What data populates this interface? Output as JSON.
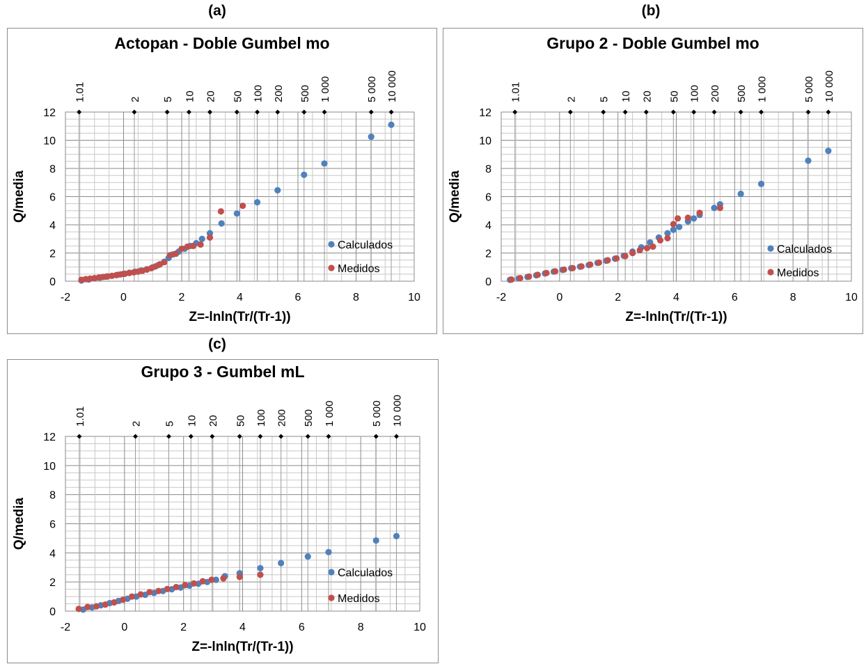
{
  "panels": [
    {
      "letter": "(a)"
    },
    {
      "letter": "(b)"
    },
    {
      "letter": "(c)"
    }
  ],
  "chart_data": [
    {
      "type": "scatter",
      "title": "Actopan - Doble Gumbel mo",
      "xlabel": "Z=-lnln(Tr/(Tr-1))",
      "ylabel": "Q/media",
      "xlim": [
        -2,
        10
      ],
      "ylim": [
        0,
        12
      ],
      "x_ticks": [
        -2,
        0,
        2,
        4,
        6,
        8,
        10
      ],
      "y_ticks": [
        0,
        2,
        4,
        6,
        8,
        10,
        12
      ],
      "grid": true,
      "legend_position": "right",
      "return_period_axis": {
        "labels": [
          "1.01",
          "2",
          "5",
          "10",
          "20",
          "50",
          "100",
          "200",
          "500",
          "1 000",
          "5 000",
          "10 000"
        ],
        "z": [
          -1.53,
          0.37,
          1.5,
          2.25,
          2.97,
          3.9,
          4.6,
          5.3,
          6.21,
          6.91,
          8.52,
          9.21
        ],
        "level": 12
      },
      "series": [
        {
          "name": "Calculados",
          "color": "#4f81bd",
          "x": [
            -1.45,
            -1.2,
            -1.0,
            -0.8,
            -0.6,
            -0.4,
            -0.2,
            0.0,
            0.2,
            0.4,
            0.6,
            0.8,
            1.0,
            1.2,
            1.4,
            1.55,
            1.7,
            1.9,
            2.1,
            2.3,
            2.5,
            2.7,
            2.97,
            3.37,
            3.9,
            4.6,
            5.3,
            6.21,
            6.91,
            8.52,
            9.21
          ],
          "y": [
            0.05,
            0.12,
            0.2,
            0.26,
            0.32,
            0.38,
            0.45,
            0.52,
            0.6,
            0.67,
            0.75,
            0.85,
            0.98,
            1.15,
            1.38,
            1.65,
            1.9,
            2.1,
            2.3,
            2.5,
            2.7,
            3.0,
            3.4,
            4.1,
            4.8,
            5.6,
            6.45,
            7.55,
            8.35,
            10.25,
            11.1
          ]
        },
        {
          "name": "Medidos",
          "color": "#c0504d",
          "x": [
            -1.45,
            -1.3,
            -1.15,
            -1.0,
            -0.85,
            -0.7,
            -0.55,
            -0.4,
            -0.25,
            -0.1,
            0.05,
            0.2,
            0.35,
            0.5,
            0.65,
            0.8,
            0.95,
            1.1,
            1.25,
            1.4,
            1.6,
            1.8,
            2.0,
            2.2,
            2.4,
            2.65,
            2.97,
            3.35,
            4.1
          ],
          "y": [
            0.1,
            0.15,
            0.18,
            0.22,
            0.26,
            0.3,
            0.34,
            0.38,
            0.43,
            0.48,
            0.53,
            0.58,
            0.63,
            0.68,
            0.74,
            0.82,
            0.92,
            1.05,
            1.2,
            1.35,
            1.85,
            1.95,
            2.3,
            2.45,
            2.5,
            2.6,
            3.1,
            4.95,
            5.35
          ]
        }
      ]
    },
    {
      "type": "scatter",
      "title": "Grupo 2 - Doble Gumbel mo",
      "xlabel": "Z=-lnln(Tr/(Tr-1))",
      "ylabel": "Q/media",
      "xlim": [
        -2,
        10
      ],
      "ylim": [
        0,
        12
      ],
      "x_ticks": [
        -2,
        0,
        2,
        4,
        6,
        8,
        10
      ],
      "y_ticks": [
        0,
        2,
        4,
        6,
        8,
        10,
        12
      ],
      "grid": true,
      "legend_position": "right",
      "return_period_axis": {
        "labels": [
          "1.01",
          "2",
          "5",
          "10",
          "20",
          "50",
          "100",
          "200",
          "500",
          "1 000",
          "5 000",
          "10 000"
        ],
        "z": [
          -1.53,
          0.37,
          1.5,
          2.25,
          2.97,
          3.9,
          4.6,
          5.3,
          6.21,
          6.91,
          8.52,
          9.21
        ],
        "level": 12
      },
      "series": [
        {
          "name": "Calculados",
          "color": "#4f81bd",
          "x": [
            -1.7,
            -1.4,
            -1.1,
            -0.8,
            -0.5,
            -0.2,
            0.1,
            0.4,
            0.7,
            1.0,
            1.3,
            1.6,
            1.9,
            2.2,
            2.5,
            2.8,
            3.1,
            3.4,
            3.7,
            3.9,
            4.1,
            4.4,
            4.6,
            4.8,
            5.3,
            5.5,
            6.21,
            6.91,
            8.52,
            9.21
          ],
          "y": [
            0.1,
            0.2,
            0.3,
            0.42,
            0.55,
            0.68,
            0.8,
            0.92,
            1.03,
            1.15,
            1.3,
            1.45,
            1.6,
            1.8,
            2.1,
            2.4,
            2.75,
            3.1,
            3.4,
            3.65,
            3.85,
            4.25,
            4.45,
            4.7,
            5.2,
            5.45,
            6.2,
            6.9,
            8.55,
            9.25
          ]
        },
        {
          "name": "Medidos",
          "color": "#c0504d",
          "x": [
            -1.65,
            -1.35,
            -1.05,
            -0.75,
            -0.45,
            -0.15,
            0.15,
            0.45,
            0.75,
            1.05,
            1.35,
            1.65,
            1.95,
            2.25,
            2.5,
            2.75,
            3.0,
            3.2,
            3.45,
            3.7,
            3.9,
            4.05,
            4.4,
            4.8,
            5.5
          ],
          "y": [
            0.12,
            0.22,
            0.33,
            0.45,
            0.58,
            0.7,
            0.82,
            0.93,
            1.05,
            1.18,
            1.32,
            1.48,
            1.62,
            1.78,
            2.0,
            2.2,
            2.35,
            2.45,
            2.9,
            3.05,
            4.05,
            4.45,
            4.5,
            4.85,
            5.2
          ]
        }
      ]
    },
    {
      "type": "scatter",
      "title": "Grupo 3 - Gumbel mL",
      "xlabel": "Z=-lnln(Tr/(Tr-1))",
      "ylabel": "Q/media",
      "xlim": [
        -2,
        10
      ],
      "ylim": [
        0,
        12
      ],
      "x_ticks": [
        -2,
        0,
        2,
        4,
        6,
        8,
        10
      ],
      "y_ticks": [
        0,
        2,
        4,
        6,
        8,
        10,
        12
      ],
      "grid": true,
      "legend_position": "right",
      "return_period_axis": {
        "labels": [
          "1.01",
          "2",
          "5",
          "10",
          "20",
          "50",
          "100",
          "200",
          "500",
          "1 000",
          "5 000",
          "10 000"
        ],
        "z": [
          -1.53,
          0.37,
          1.5,
          2.25,
          2.97,
          3.9,
          4.6,
          5.3,
          6.21,
          6.91,
          8.52,
          9.21
        ],
        "level": 12
      },
      "series": [
        {
          "name": "Calculados",
          "color": "#4f81bd",
          "x": [
            -1.4,
            -1.1,
            -0.8,
            -0.5,
            -0.2,
            0.1,
            0.4,
            0.7,
            1.0,
            1.3,
            1.6,
            1.9,
            2.2,
            2.5,
            2.8,
            3.1,
            3.4,
            3.9,
            4.6,
            5.3,
            6.21,
            6.91,
            8.52,
            9.21
          ],
          "y": [
            0.1,
            0.25,
            0.4,
            0.55,
            0.7,
            0.85,
            1.0,
            1.12,
            1.25,
            1.38,
            1.5,
            1.62,
            1.75,
            1.88,
            2.0,
            2.15,
            2.4,
            2.6,
            2.95,
            3.3,
            3.75,
            4.05,
            4.85,
            5.15
          ]
        },
        {
          "name": "Medidos",
          "color": "#c0504d",
          "x": [
            -1.55,
            -1.25,
            -0.95,
            -0.65,
            -0.35,
            -0.05,
            0.25,
            0.55,
            0.85,
            1.15,
            1.45,
            1.75,
            2.05,
            2.35,
            2.65,
            2.95,
            3.35,
            3.9,
            4.6
          ],
          "y": [
            0.15,
            0.28,
            0.33,
            0.45,
            0.6,
            0.78,
            1.0,
            1.15,
            1.3,
            1.38,
            1.52,
            1.65,
            1.78,
            1.9,
            2.05,
            2.15,
            2.25,
            2.35,
            2.5
          ]
        }
      ]
    }
  ]
}
